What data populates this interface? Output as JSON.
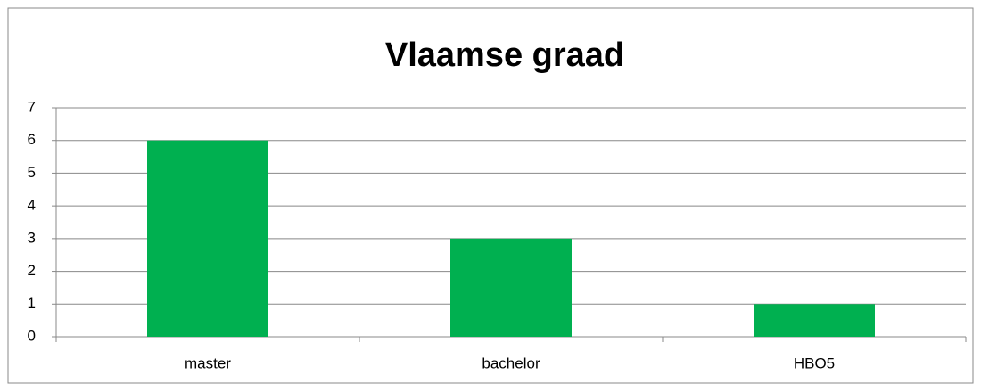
{
  "chart_data": {
    "type": "bar",
    "title": "Vlaamse graad",
    "categories": [
      "master",
      "bachelor",
      "HBO5"
    ],
    "values": [
      6,
      3,
      1
    ],
    "color": "#00b050",
    "ylim": [
      0,
      7
    ],
    "yticks": [
      0,
      1,
      2,
      3,
      4,
      5,
      6,
      7
    ],
    "grid": true
  }
}
